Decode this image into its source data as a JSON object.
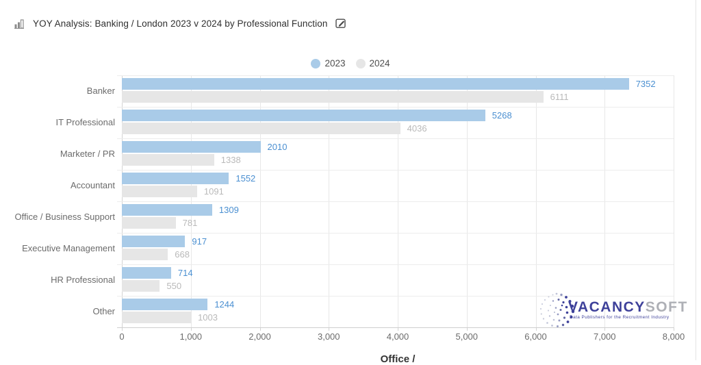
{
  "header": {
    "title": "YOY Analysis: Banking / London 2023 v 2024 by Professional Function",
    "icons": {
      "left": "bar-chart-icon",
      "right": "edit-icon"
    }
  },
  "legend": [
    {
      "label": "2023",
      "color": "#a9cbe8"
    },
    {
      "label": "2024",
      "color": "#e6e6e6"
    }
  ],
  "chart_data": {
    "type": "bar",
    "orientation": "horizontal",
    "title": "YOY Analysis: Banking / London 2023 v 2024 by Professional Function",
    "categories": [
      "Banker",
      "IT Professional",
      "Marketer / PR",
      "Accountant",
      "Office / Business Support",
      "Executive Management",
      "HR Professional",
      "Other"
    ],
    "series": [
      {
        "name": "2023",
        "color": "#a9cbe8",
        "label_color": "#4a8fd1",
        "values": [
          7352,
          5268,
          2010,
          1552,
          1309,
          917,
          714,
          1244
        ]
      },
      {
        "name": "2024",
        "color": "#e6e6e6",
        "label_color": "#b9b9b9",
        "values": [
          6111,
          4036,
          1338,
          1091,
          781,
          668,
          550,
          1003
        ]
      }
    ],
    "xlim": [
      0,
      8000
    ],
    "x_ticks": [
      "0",
      "1,000",
      "2,000",
      "3,000",
      "4,000",
      "5,000",
      "6,000",
      "7,000",
      "8,000"
    ],
    "xlabel": "Office /",
    "grid": true,
    "legend_position": "top-center",
    "value_labels": "outside-end"
  },
  "watermark": {
    "brand_primary": "VACANCY",
    "brand_secondary": "SOFT",
    "tagline": "Data Publishers for the Recruitment Industry"
  }
}
